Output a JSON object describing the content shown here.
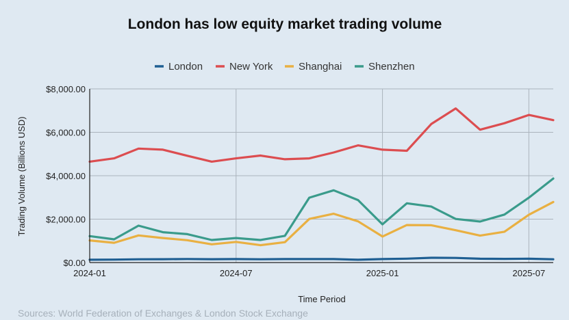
{
  "chart_data": {
    "type": "line",
    "title": "London has low equity market trading volume",
    "xlabel": "Time Period",
    "ylabel": "Trading Volume (Billions USD)",
    "source": "Sources: World Federation of Exchanges & London Stock Exchange",
    "ylim": [
      0,
      8000
    ],
    "y_ticks": [
      0,
      2000,
      4000,
      6000,
      8000
    ],
    "y_tick_labels": [
      "$0.00",
      "$2,000.00",
      "$4,000.00",
      "$6,000.00",
      "$8,000.00"
    ],
    "x_ticks": [
      "2024-01",
      "2024-07",
      "2025-01",
      "2025-07"
    ],
    "x": [
      "2024-01",
      "2024-02",
      "2024-03",
      "2024-04",
      "2024-05",
      "2024-06",
      "2024-07",
      "2024-08",
      "2024-09",
      "2024-10",
      "2024-11",
      "2024-12",
      "2025-01",
      "2025-02",
      "2025-03",
      "2025-04",
      "2025-05",
      "2025-06",
      "2025-07",
      "2025-08"
    ],
    "grid": true,
    "legend_position": "top",
    "series": [
      {
        "name": "London",
        "color": "#1f5f93",
        "values": [
          130,
          135,
          150,
          155,
          165,
          155,
          160,
          150,
          160,
          160,
          160,
          130,
          160,
          180,
          220,
          215,
          175,
          170,
          175,
          150
        ]
      },
      {
        "name": "New York",
        "color": "#dc4d50",
        "values": [
          4650,
          4800,
          5250,
          5200,
          4920,
          4650,
          4800,
          4930,
          4760,
          4800,
          5070,
          5400,
          5200,
          5150,
          6380,
          7100,
          6120,
          6420,
          6800,
          6560
        ]
      },
      {
        "name": "Shanghai",
        "color": "#e9b042",
        "values": [
          1020,
          910,
          1250,
          1130,
          1030,
          840,
          950,
          800,
          940,
          2010,
          2250,
          1900,
          1200,
          1730,
          1720,
          1490,
          1240,
          1420,
          2200,
          2790
        ]
      },
      {
        "name": "Shenzhen",
        "color": "#3a9b8b",
        "values": [
          1220,
          1070,
          1700,
          1400,
          1310,
          1040,
          1130,
          1040,
          1230,
          2990,
          3330,
          2880,
          1760,
          2730,
          2580,
          2010,
          1890,
          2210,
          2990,
          3870
        ]
      }
    ]
  }
}
